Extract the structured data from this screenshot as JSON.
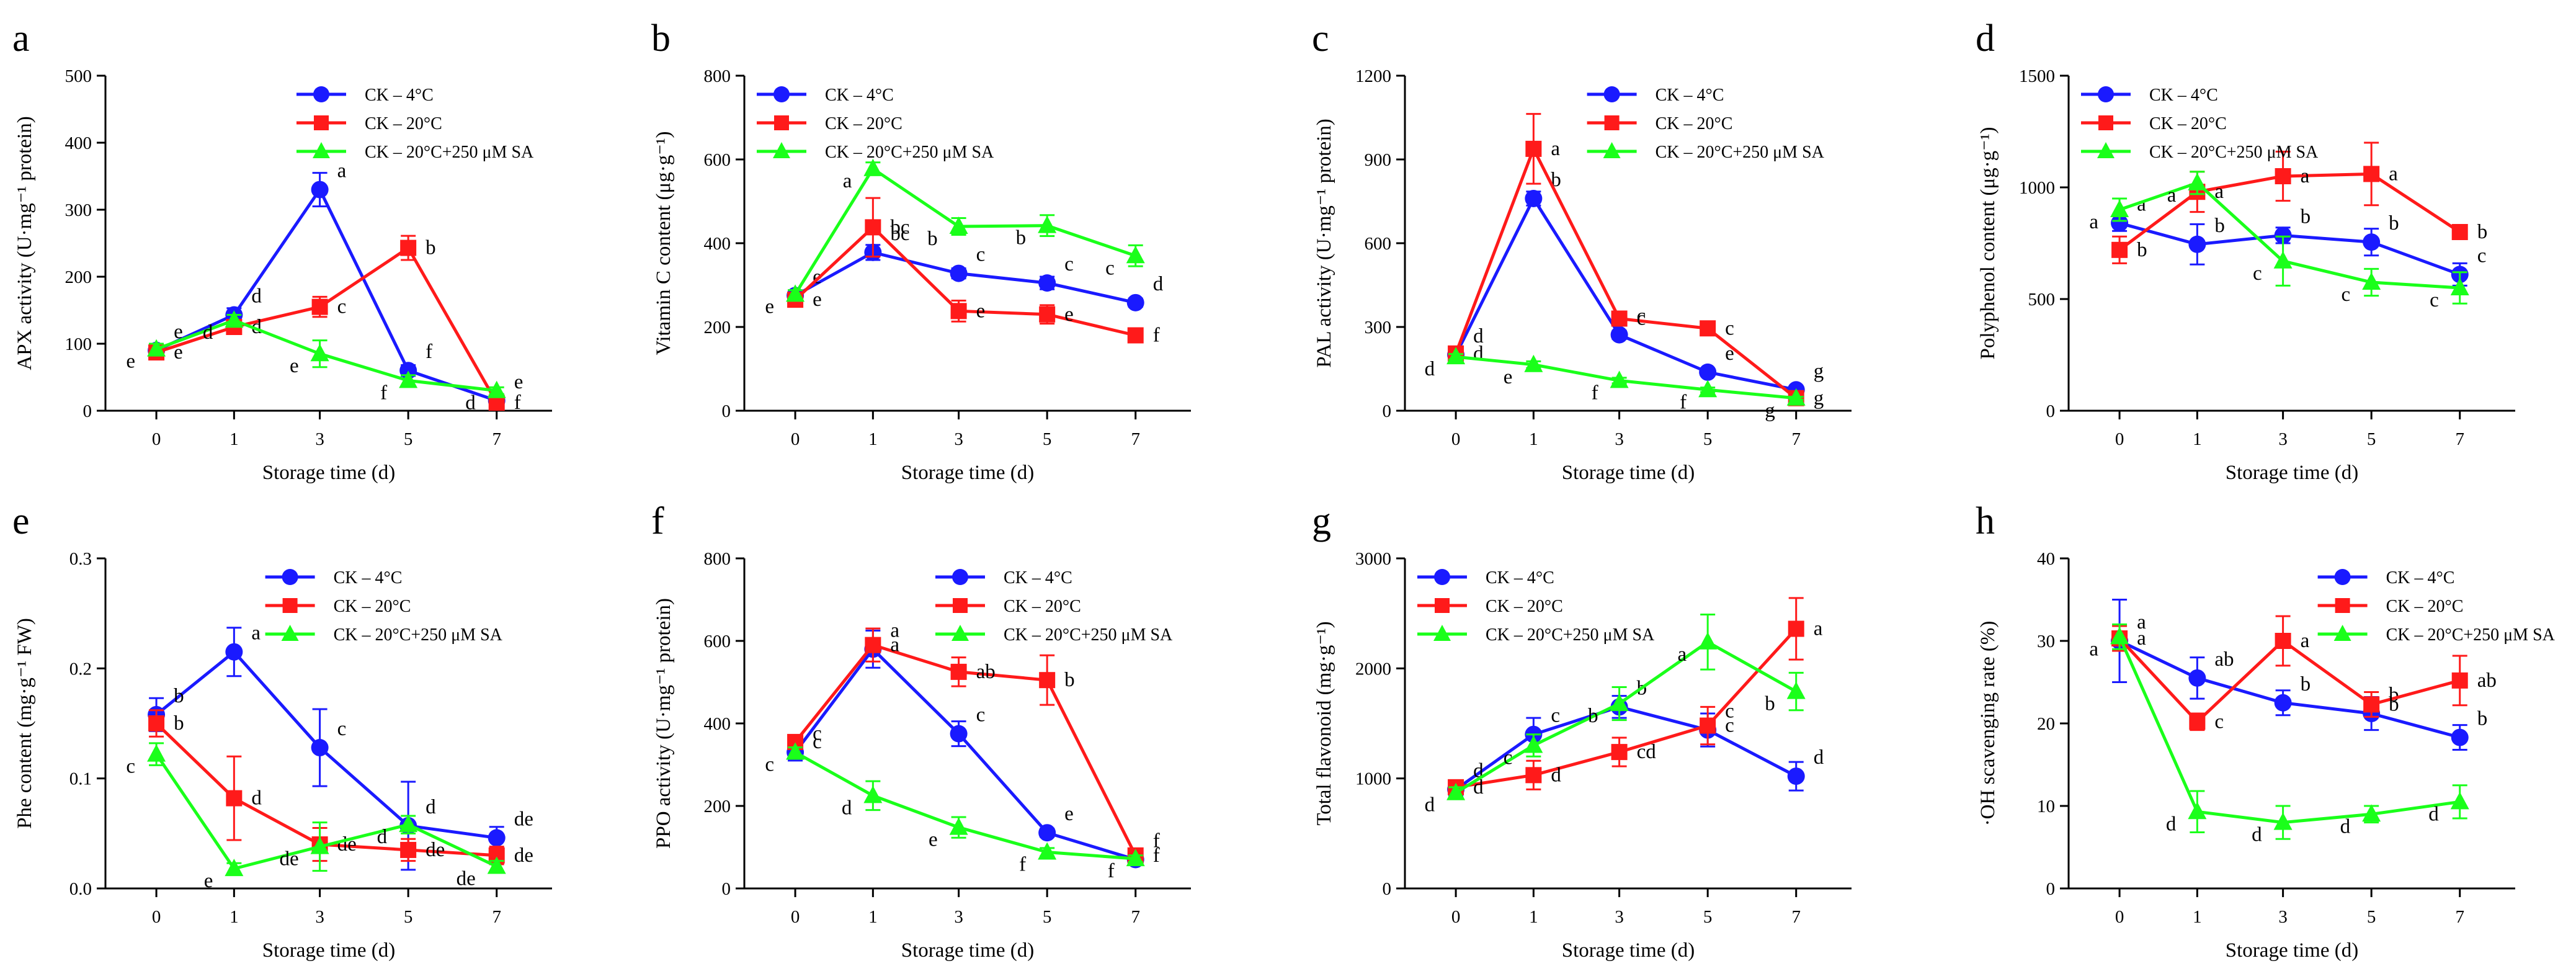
{
  "legend": [
    "CK – 4°C",
    "CK – 20°C",
    "CK – 20°C+250 μM SA"
  ],
  "series_colors": [
    "#1a1aff",
    "#ff1a1a",
    "#1aff1a"
  ],
  "chart_data": [
    {
      "id": "a",
      "letter": "a",
      "type": "line",
      "ylabel": "APX activity (U·mg⁻¹ protein)",
      "xlabel": "Storage time (d)",
      "categories": [
        "0",
        "1",
        "3",
        "5",
        "7"
      ],
      "ylim": [
        0,
        500
      ],
      "yticks": [
        "0",
        "100",
        "200",
        "300",
        "400",
        "500"
      ],
      "series": [
        {
          "name": "CK – 4°C",
          "values": [
            90,
            143,
            330,
            60,
            15
          ],
          "err": [
            8,
            10,
            25,
            8,
            5
          ],
          "letters": [
            "e",
            "d",
            "a",
            "f",
            "e"
          ]
        },
        {
          "name": "CK – 20°C",
          "values": [
            87,
            125,
            155,
            243,
            12
          ],
          "err": [
            8,
            8,
            15,
            18,
            5
          ],
          "letters": [
            "e",
            "d",
            "c",
            "b",
            "f"
          ]
        },
        {
          "name": "CK – 20°C+250 μM SA",
          "values": [
            92,
            135,
            85,
            45,
            30
          ],
          "err": [
            8,
            8,
            20,
            8,
            5
          ],
          "letters": [
            "e",
            "d",
            "e",
            "f",
            "d"
          ]
        }
      ]
    },
    {
      "id": "b",
      "letter": "b",
      "type": "line",
      "ylabel": "Vitamin C content (μg·g⁻¹)",
      "xlabel": "Storage time (d)",
      "categories": [
        "0",
        "1",
        "3",
        "5",
        "7"
      ],
      "ylim": [
        0,
        800
      ],
      "yticks": [
        "0",
        "200",
        "400",
        "600",
        "800"
      ],
      "series": [
        {
          "name": "CK – 4°C",
          "values": [
            275,
            378,
            328,
            305,
            258
          ],
          "err": [
            12,
            18,
            12,
            15,
            10
          ],
          "letters": [
            "e",
            "bc",
            "c",
            "c",
            "d"
          ]
        },
        {
          "name": "CK – 20°C",
          "values": [
            265,
            438,
            238,
            230,
            180
          ],
          "err": [
            12,
            70,
            25,
            22,
            15
          ],
          "letters": [
            "e",
            "bc",
            "e",
            "e",
            "f"
          ]
        },
        {
          "name": "CK – 20°C+250 μM SA",
          "values": [
            278,
            578,
            440,
            442,
            370
          ],
          "err": [
            10,
            15,
            20,
            25,
            25
          ],
          "letters": [
            "e",
            "a",
            "b",
            "b",
            "c"
          ]
        }
      ]
    },
    {
      "id": "c",
      "letter": "c",
      "type": "line",
      "ylabel": "PAL activity (U·mg⁻¹ protein)",
      "xlabel": "Storage time (d)",
      "categories": [
        "0",
        "1",
        "3",
        "5",
        "7"
      ],
      "ylim": [
        0,
        1200
      ],
      "yticks": [
        "0",
        "300",
        "600",
        "900",
        "1200"
      ],
      "series": [
        {
          "name": "CK – 4°C",
          "values": [
            200,
            760,
            272,
            138,
            75
          ],
          "err": [
            12,
            25,
            15,
            10,
            8
          ],
          "letters": [
            "d",
            "b",
            "c",
            "e",
            "g"
          ]
        },
        {
          "name": "CK – 20°C",
          "values": [
            205,
            938,
            330,
            295,
            45
          ],
          "err": [
            12,
            125,
            20,
            15,
            8
          ],
          "letters": [
            "d",
            "a",
            "c",
            "c",
            "g"
          ]
        },
        {
          "name": "CK – 20°C+250 μM SA",
          "values": [
            193,
            165,
            108,
            75,
            45
          ],
          "err": [
            10,
            12,
            10,
            8,
            5
          ],
          "letters": [
            "d",
            "e",
            "f",
            "f",
            "g"
          ]
        }
      ]
    },
    {
      "id": "d",
      "letter": "d",
      "type": "line",
      "ylabel": "Polyphenol content (μg·g⁻¹)",
      "xlabel": "Storage time (d)",
      "categories": [
        "0",
        "1",
        "3",
        "5",
        "7"
      ],
      "ylim": [
        0,
        1500
      ],
      "yticks": [
        "0",
        "500",
        "1000",
        "1500"
      ],
      "series": [
        {
          "name": "CK – 4°C",
          "values": [
            840,
            745,
            785,
            755,
            610
          ],
          "err": [
            35,
            90,
            35,
            60,
            50
          ],
          "letters": [
            "a",
            "b",
            "b",
            "b",
            "c"
          ]
        },
        {
          "name": "CK – 20°C",
          "values": [
            720,
            980,
            1050,
            1060,
            800
          ],
          "err": [
            60,
            90,
            110,
            140,
            25
          ],
          "letters": [
            "b",
            "a",
            "a",
            "a",
            "b"
          ]
        },
        {
          "name": "CK – 20°C+250 μM SA",
          "values": [
            900,
            1020,
            670,
            575,
            550
          ],
          "err": [
            50,
            50,
            110,
            60,
            70
          ],
          "letters": [
            "a",
            "a",
            "c",
            "c",
            "c"
          ]
        }
      ]
    },
    {
      "id": "e",
      "letter": "e",
      "type": "line",
      "ylabel": "Phe content (mg·g⁻¹ FW)",
      "xlabel": "Storage time (d)",
      "categories": [
        "0",
        "1",
        "3",
        "5",
        "7"
      ],
      "ylim": [
        0,
        0.3
      ],
      "yticks": [
        "0.0",
        "0.1",
        "0.2",
        "0.3"
      ],
      "series": [
        {
          "name": "CK – 4°C",
          "values": [
            0.158,
            0.215,
            0.128,
            0.057,
            0.046
          ],
          "err": [
            0.015,
            0.022,
            0.035,
            0.04,
            0.01
          ],
          "letters": [
            "b",
            "a",
            "c",
            "d",
            "de"
          ]
        },
        {
          "name": "CK – 20°C",
          "values": [
            0.15,
            0.082,
            0.04,
            0.035,
            0.03
          ],
          "err": [
            0.012,
            0.038,
            0.015,
            0.01,
            0.008
          ],
          "letters": [
            "b",
            "d",
            "de",
            "de",
            "de"
          ]
        },
        {
          "name": "CK – 20°C+250 μM SA",
          "values": [
            0.122,
            0.018,
            0.038,
            0.058,
            0.02
          ],
          "err": [
            0.01,
            0.005,
            0.022,
            0.008,
            0.005
          ],
          "letters": [
            "c",
            "e",
            "de",
            "d",
            "de"
          ]
        }
      ]
    },
    {
      "id": "f",
      "letter": "f",
      "type": "line",
      "ylabel": "PPO activity (U·mg⁻¹ protein)",
      "xlabel": "Storage time (d)",
      "categories": [
        "0",
        "1",
        "3",
        "5",
        "7"
      ],
      "ylim": [
        0,
        800
      ],
      "yticks": [
        "0",
        "200",
        "400",
        "600",
        "800"
      ],
      "series": [
        {
          "name": "CK – 4°C",
          "values": [
            330,
            580,
            375,
            135,
            70
          ],
          "err": [
            20,
            45,
            30,
            10,
            8
          ],
          "letters": [
            "c",
            "a",
            "c",
            "e",
            "f"
          ]
        },
        {
          "name": "CK – 20°C",
          "values": [
            355,
            590,
            525,
            505,
            80
          ],
          "err": [
            12,
            40,
            35,
            60,
            10
          ],
          "letters": [
            "c",
            "a",
            "ab",
            "b",
            "f"
          ]
        },
        {
          "name": "CK – 20°C+250 μM SA",
          "values": [
            330,
            225,
            148,
            88,
            72
          ],
          "err": [
            12,
            35,
            25,
            10,
            8
          ],
          "letters": [
            "c",
            "d",
            "e",
            "f",
            "f"
          ]
        }
      ]
    },
    {
      "id": "g",
      "letter": "g",
      "type": "line",
      "ylabel": "Total flavonoid (mg·g⁻¹)",
      "xlabel": "Storage time (d)",
      "categories": [
        "0",
        "1",
        "3",
        "5",
        "7"
      ],
      "ylim": [
        0,
        3000
      ],
      "yticks": [
        "0",
        "1000",
        "2000",
        "3000"
      ],
      "series": [
        {
          "name": "CK – 4°C",
          "values": [
            900,
            1400,
            1650,
            1440,
            1020
          ],
          "err": [
            60,
            150,
            100,
            150,
            130
          ],
          "letters": [
            "d",
            "c",
            "b",
            "c",
            "d"
          ]
        },
        {
          "name": "CK – 20°C",
          "values": [
            920,
            1030,
            1240,
            1480,
            2360
          ],
          "err": [
            60,
            130,
            130,
            170,
            280
          ],
          "letters": [
            "d",
            "d",
            "cd",
            "c",
            "a"
          ]
        },
        {
          "name": "CK – 20°C+250 μM SA",
          "values": [
            870,
            1300,
            1680,
            2240,
            1790
          ],
          "err": [
            50,
            100,
            150,
            250,
            170
          ],
          "letters": [
            "d",
            "c",
            "b",
            "a",
            "b"
          ]
        }
      ]
    },
    {
      "id": "h",
      "letter": "h",
      "type": "line",
      "ylabel": "·OH scavenging rate (%)",
      "xlabel": "Storage time (d)",
      "categories": [
        "0",
        "1",
        "3",
        "5",
        "7"
      ],
      "ylim": [
        0,
        40
      ],
      "yticks": [
        "0",
        "10",
        "20",
        "30",
        "40"
      ],
      "series": [
        {
          "name": "CK – 4°C",
          "values": [
            30,
            25.5,
            22.5,
            21.2,
            18.3
          ],
          "err": [
            5,
            2.5,
            1.5,
            2,
            1.5
          ],
          "letters": [
            "a",
            "ab",
            "b",
            "b",
            "b"
          ]
        },
        {
          "name": "CK – 20°C",
          "values": [
            30.3,
            20.2,
            30,
            22.3,
            25.2
          ],
          "err": [
            1.5,
            1,
            3,
            1.5,
            3
          ],
          "letters": [
            "a",
            "c",
            "a",
            "b",
            "ab"
          ]
        },
        {
          "name": "CK – 20°C+250 μM SA",
          "values": [
            30.5,
            9.3,
            8,
            9,
            10.5
          ],
          "err": [
            1.5,
            2.5,
            2,
            1,
            2
          ],
          "letters": [
            "a",
            "d",
            "d",
            "d",
            "d"
          ]
        }
      ]
    }
  ]
}
